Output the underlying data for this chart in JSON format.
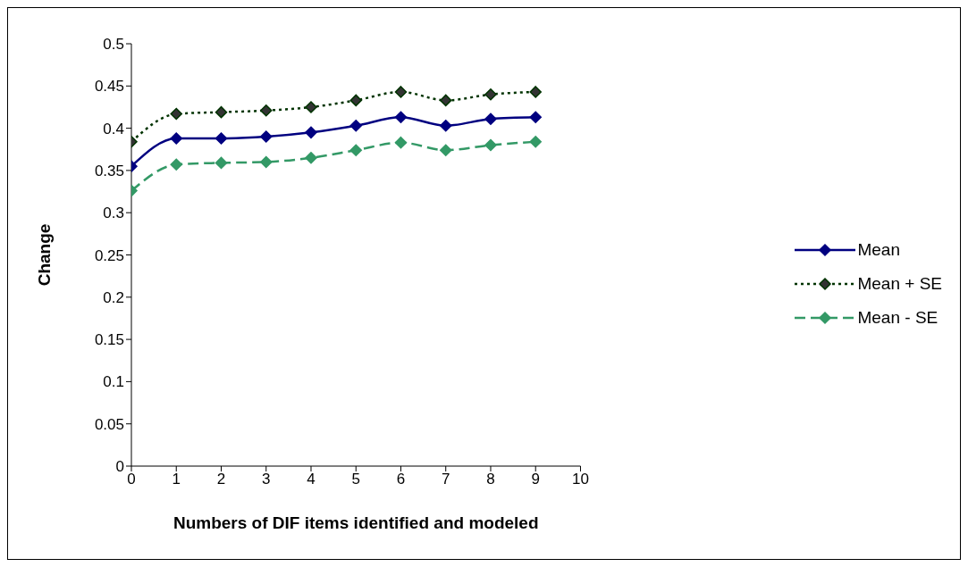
{
  "chart_data": {
    "type": "line",
    "xlabel": "Numbers of DIF items identified and modeled",
    "ylabel": "Change",
    "x": [
      0,
      1,
      2,
      3,
      4,
      5,
      6,
      7,
      8,
      9
    ],
    "series": [
      {
        "name": "Mean",
        "color": "#000080",
        "line_style": "solid",
        "values": [
          0.355,
          0.388,
          0.388,
          0.39,
          0.395,
          0.403,
          0.413,
          0.403,
          0.411,
          0.413
        ]
      },
      {
        "name": "Mean + SE",
        "color": "#003300",
        "line_style": "dotted",
        "values": [
          0.384,
          0.417,
          0.419,
          0.421,
          0.425,
          0.433,
          0.443,
          0.433,
          0.44,
          0.443
        ]
      },
      {
        "name": "Mean - SE",
        "color": "#339966",
        "line_style": "dashed",
        "values": [
          0.326,
          0.357,
          0.359,
          0.36,
          0.365,
          0.374,
          0.383,
          0.374,
          0.38,
          0.384
        ]
      }
    ],
    "xlim": [
      0,
      10
    ],
    "xticks": [
      0,
      1,
      2,
      3,
      4,
      5,
      6,
      7,
      8,
      9,
      10
    ],
    "ylim": [
      0,
      0.5
    ],
    "yticks": [
      0,
      0.05,
      0.1,
      0.15,
      0.2,
      0.25,
      0.3,
      0.35,
      0.4,
      0.45,
      0.5
    ],
    "grid": false,
    "legend": "right",
    "marker": "diamond"
  }
}
